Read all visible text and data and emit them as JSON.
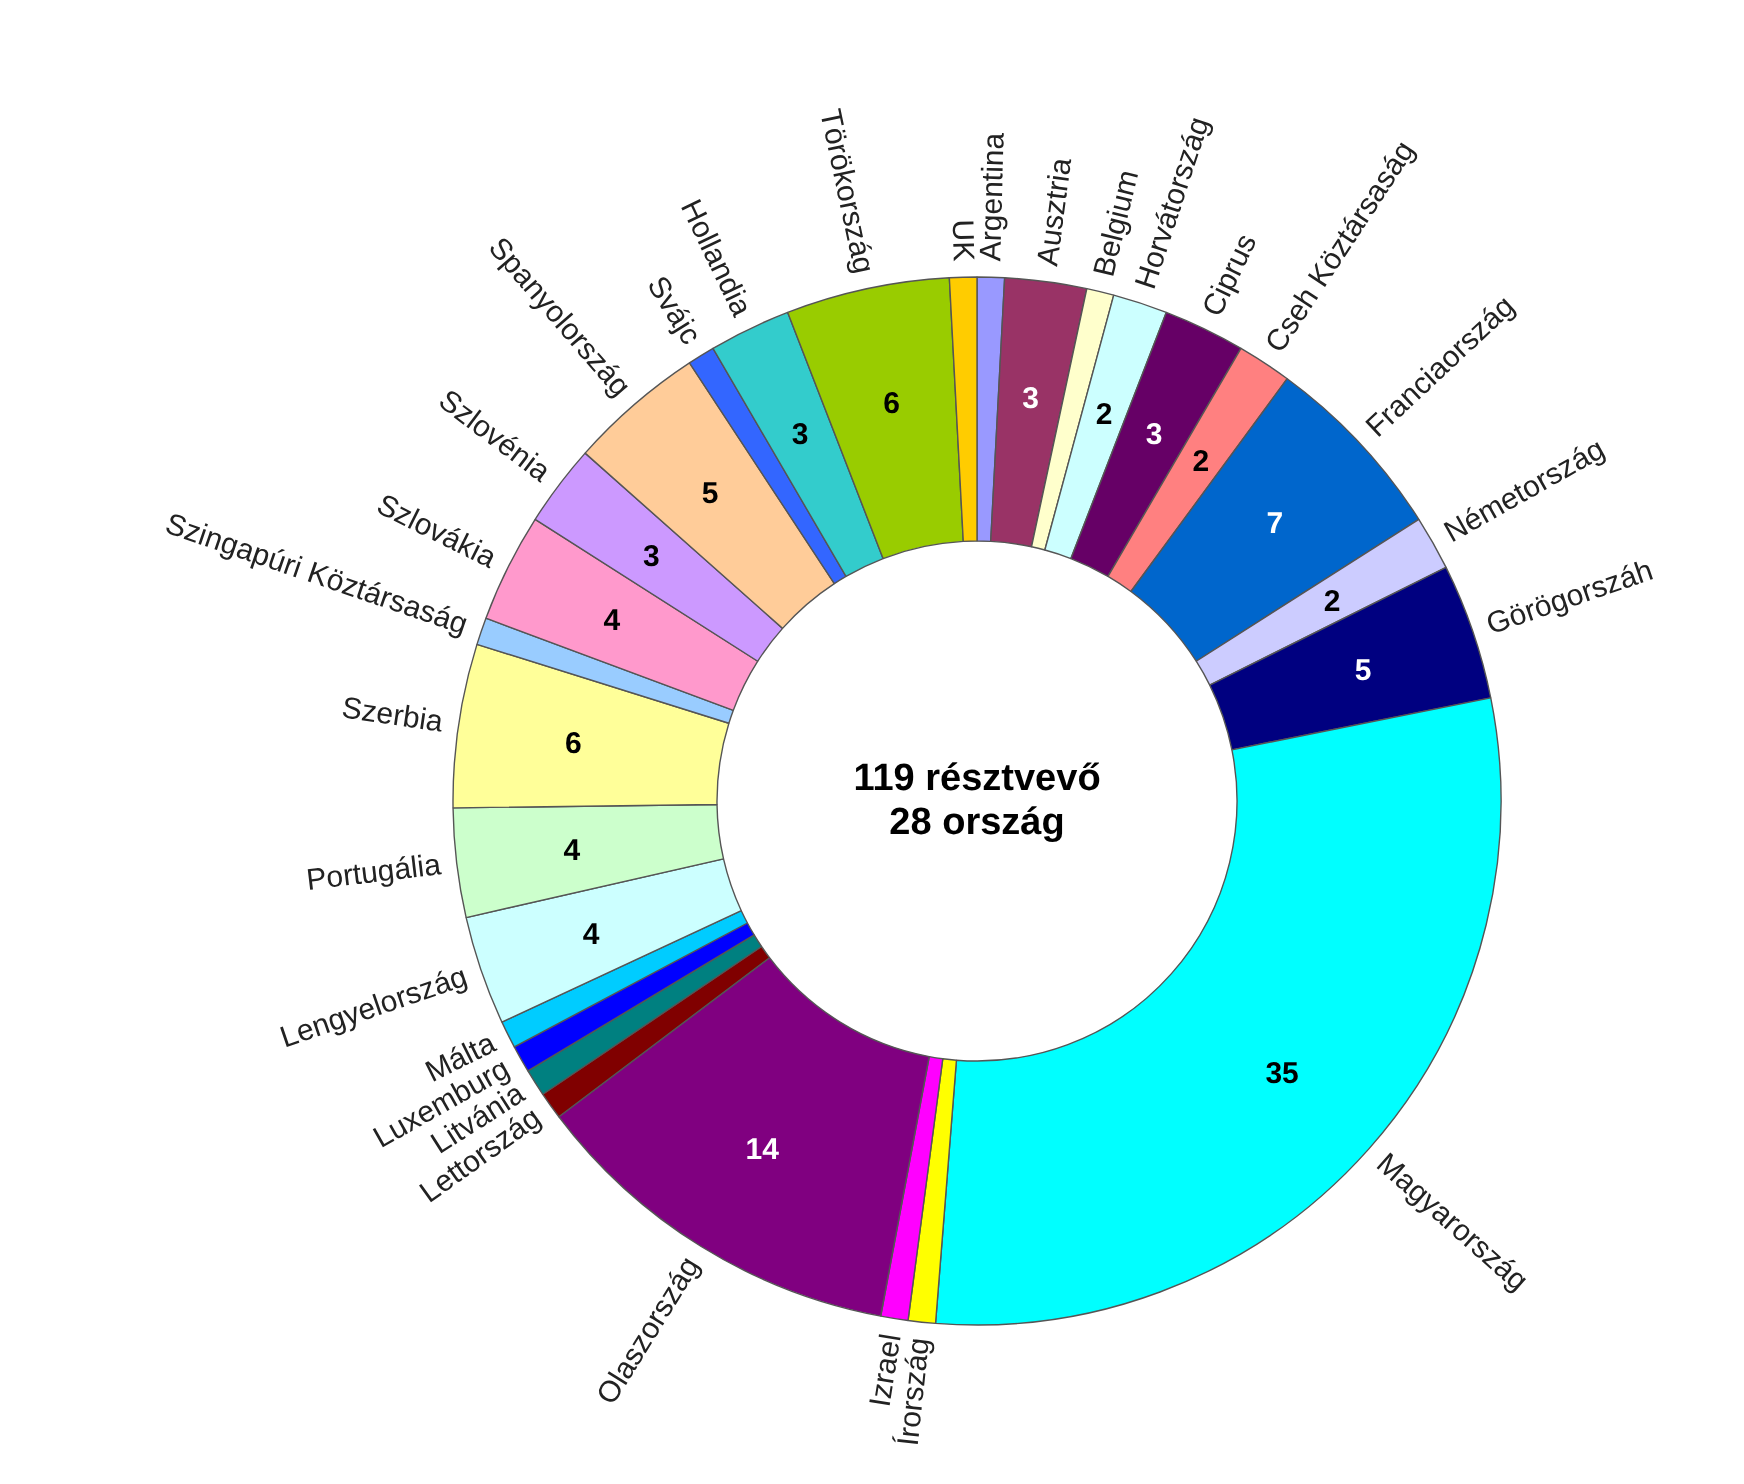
{
  "chart_data": {
    "type": "donut",
    "annotations": [
      "119 résztvevő",
      "28 ország"
    ],
    "categories": [
      "Argentina",
      "Ausztria",
      "Belgium",
      "Horvátország",
      "Ciprus",
      "Cseh Köztársaság",
      "Franciaország",
      "Németország",
      "Görögorszáh",
      "Magyarország",
      "Írország",
      "Izrael",
      "Olaszország",
      "Lettország",
      "Litvánia",
      "Luxemburg",
      "Málta",
      "Lengyelország",
      "Portugália",
      "Szerbia",
      "Szingapúri Köztársaság",
      "Szlovákia",
      "Szlovénia",
      "Spanyolország",
      "Svájc",
      "Hollandia",
      "Törökország",
      "UK"
    ],
    "values": [
      1,
      3,
      1,
      2,
      3,
      2,
      7,
      2,
      5,
      35,
      1,
      1,
      14,
      1,
      1,
      1,
      1,
      4,
      4,
      6,
      1,
      4,
      3,
      5,
      1,
      3,
      6,
      1
    ],
    "colors": [
      "#9999ff",
      "#993366",
      "#ffffcc",
      "#ccffff",
      "#660066",
      "#ff8080",
      "#0066cc",
      "#ccccff",
      "#000080",
      "#00ffff",
      "#ffff00",
      "#ff00ff",
      "#800080",
      "#800000",
      "#008080",
      "#0000ff",
      "#00ccff",
      "#ccffff",
      "#ccffcc",
      "#ffff99",
      "#99ccff",
      "#ff99cc",
      "#cc99ff",
      "#ffcc99",
      "#3366ff",
      "#33cccc",
      "#99cc00",
      "#ffcc00"
    ],
    "value_labels": [
      null,
      "3",
      null,
      "2",
      "3",
      "2",
      "7",
      "2",
      "5",
      "35",
      null,
      null,
      "14",
      null,
      null,
      null,
      null,
      "4",
      "4",
      "6",
      null,
      "4",
      "3",
      "5",
      null,
      "3",
      "6",
      null
    ]
  }
}
